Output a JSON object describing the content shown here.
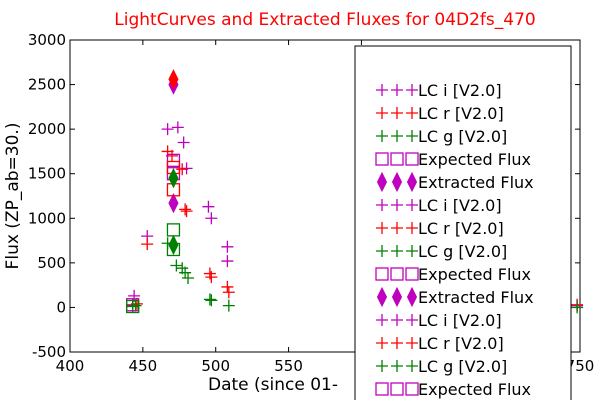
{
  "chart_data": {
    "type": "scatter",
    "title": "LightCurves and Extracted Fluxes for 04D2fs_470",
    "xlabel": "Date (since 01-",
    "ylabel": "Flux (ZP_ab=30.)",
    "xlim": [
      400,
      750
    ],
    "ylim": [
      -500,
      3000
    ],
    "x_ticks": [
      "400",
      "450",
      "500",
      "550",
      "6",
      "750"
    ],
    "y_ticks": [
      "-500",
      "0",
      "500",
      "1000",
      "1500",
      "2000",
      "2500",
      "3000"
    ],
    "legend_position": "right",
    "series": [
      {
        "name": "LC i [V2.0]",
        "marker": "plus",
        "color": "#bf00bf",
        "x": [
          443,
          444,
          453,
          467,
          474,
          478,
          480,
          495,
          497,
          508,
          508,
          748
        ],
        "y": [
          30,
          130,
          800,
          2000,
          2020,
          1850,
          1560,
          1130,
          1000,
          680,
          520,
          30
        ]
      },
      {
        "name": "LC r [V2.0]",
        "marker": "plus",
        "color": "#ff0000",
        "x": [
          443,
          446,
          453,
          467,
          470,
          477,
          479,
          480,
          496,
          497,
          508,
          509,
          748
        ],
        "y": [
          20,
          40,
          710,
          1750,
          1700,
          1550,
          1100,
          1080,
          380,
          340,
          230,
          170,
          20
        ]
      },
      {
        "name": "LC g [V2.0]",
        "marker": "plus",
        "color": "#008000",
        "x": [
          443,
          445,
          467,
          473,
          477,
          479,
          481,
          496,
          497,
          509,
          748
        ],
        "y": [
          10,
          20,
          720,
          470,
          440,
          390,
          330,
          90,
          80,
          20,
          0
        ]
      },
      {
        "name": "Expected Flux",
        "marker": "square",
        "color": "#bf00bf",
        "x": [
          471,
          471,
          443
        ],
        "y": [
          1650,
          1500,
          30
        ]
      },
      {
        "name": "Extracted Flux",
        "marker": "diamond",
        "color": "#bf00bf",
        "x": [
          471,
          471
        ],
        "y": [
          2500,
          1170
        ]
      },
      {
        "name": "Expected Flux",
        "marker": "square",
        "color": "#ff0000",
        "x": [
          471,
          471
        ],
        "y": [
          1570,
          1320
        ]
      },
      {
        "name": "Extracted Flux",
        "marker": "diamond",
        "color": "#ff0000",
        "x": [
          471
        ],
        "y": [
          2560
        ]
      },
      {
        "name": "Expected Flux",
        "marker": "square",
        "color": "#008000",
        "x": [
          471,
          471,
          443
        ],
        "y": [
          870,
          650,
          10
        ]
      },
      {
        "name": "Extracted Flux",
        "marker": "diamond",
        "color": "#008000",
        "x": [
          471,
          471
        ],
        "y": [
          1450,
          700
        ]
      }
    ],
    "legend": [
      {
        "label": "LC i [V2.0]",
        "marker": "plus",
        "color": "#bf00bf"
      },
      {
        "label": "LC r [V2.0]",
        "marker": "plus",
        "color": "#ff0000"
      },
      {
        "label": "LC g [V2.0]",
        "marker": "plus",
        "color": "#008000"
      },
      {
        "label": "Expected Flux",
        "marker": "square",
        "color": "#bf00bf"
      },
      {
        "label": "Extracted Flux",
        "marker": "diamond",
        "color": "#bf00bf"
      },
      {
        "label": "LC i [V2.0]",
        "marker": "plus",
        "color": "#bf00bf"
      },
      {
        "label": "LC r [V2.0]",
        "marker": "plus",
        "color": "#ff0000"
      },
      {
        "label": "LC g [V2.0]",
        "marker": "plus",
        "color": "#008000"
      },
      {
        "label": "Expected Flux",
        "marker": "square",
        "color": "#bf00bf"
      },
      {
        "label": "Extracted Flux",
        "marker": "diamond",
        "color": "#bf00bf"
      },
      {
        "label": "LC i [V2.0]",
        "marker": "plus",
        "color": "#bf00bf"
      },
      {
        "label": "LC r [V2.0]",
        "marker": "plus",
        "color": "#ff0000"
      },
      {
        "label": "LC g [V2.0]",
        "marker": "plus",
        "color": "#008000"
      },
      {
        "label": "Expected Flux",
        "marker": "square",
        "color": "#bf00bf"
      }
    ]
  }
}
